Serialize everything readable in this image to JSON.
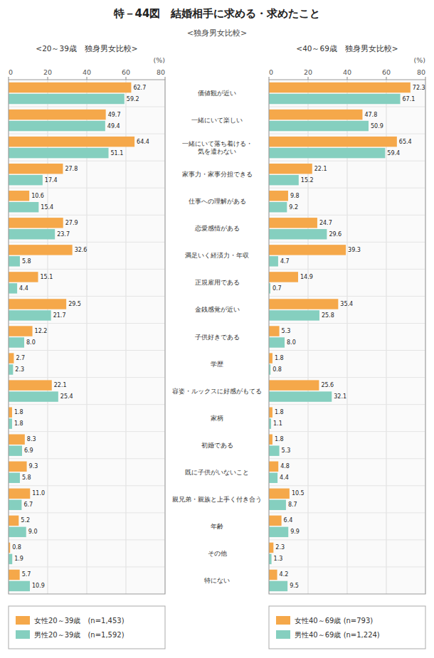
{
  "title": "特－44図　結婚相手に求める・求めたこと",
  "subtitle": "<独身男女比較>",
  "chart_data": [
    {
      "type": "bar",
      "orientation": "horizontal",
      "title": "<20～39歳　独身男女比較>",
      "xlabel": "(%)",
      "categories": [
        "価値観が近い",
        "一緒にいて楽しい",
        "一緒にいて落ち着ける・\n気を遣わない",
        "家事力・家事分担できる",
        "仕事への理解がある",
        "恋愛感情がある",
        "満足いく経済力・年収",
        "正規雇用である",
        "金銭感覚が近い",
        "子供好きである",
        "学歴",
        "容姿・ルックスに好感がもてる",
        "家柄",
        "初婚である",
        "既に子供がいないこと",
        "親兄弟・親族と上手く付き合う",
        "年齢",
        "その他",
        "特にない"
      ],
      "series": [
        {
          "name": "女性20～39歳　(n=1,453)",
          "color": "#F5A84A",
          "values": [
            62.7,
            49.7,
            64.4,
            27.8,
            10.6,
            27.9,
            32.6,
            15.1,
            29.5,
            12.2,
            2.7,
            22.1,
            1.8,
            8.3,
            9.3,
            11.0,
            5.2,
            0.8,
            5.7
          ]
        },
        {
          "name": "男性20～39歳　(n=1,592)",
          "color": "#85CFBF",
          "values": [
            59.2,
            49.4,
            51.1,
            17.4,
            15.4,
            23.7,
            5.8,
            4.4,
            21.7,
            8.0,
            2.3,
            25.4,
            1.8,
            6.9,
            5.8,
            6.7,
            9.0,
            1.9,
            10.9
          ]
        }
      ],
      "xlim": [
        0,
        80
      ],
      "xticks": [
        0,
        20,
        40,
        60,
        80
      ],
      "grid": true,
      "data_labels": true,
      "legend": "bottom"
    },
    {
      "type": "bar",
      "orientation": "horizontal",
      "title": "<40～69歳　独身男女比較>",
      "xlabel": "(%)",
      "categories": [
        "価値観が近い",
        "一緒にいて楽しい",
        "一緒にいて落ち着ける・\n気を遣わない",
        "家事力・家事分担できる",
        "仕事への理解がある",
        "恋愛感情がある",
        "満足いく経済力・年収",
        "正規雇用である",
        "金銭感覚が近い",
        "子供好きである",
        "学歴",
        "容姿・ルックスに好感がもてる",
        "家柄",
        "初婚である",
        "既に子供がいないこと",
        "親兄弟・親族と上手く付き合う",
        "年齢",
        "その他",
        "特にない"
      ],
      "series": [
        {
          "name": "女性40～69歳  (n=793)",
          "color": "#F5A84A",
          "values": [
            72.3,
            47.8,
            65.4,
            22.1,
            9.8,
            24.7,
            39.3,
            14.9,
            35.4,
            5.3,
            1.8,
            25.6,
            1.8,
            1.8,
            4.8,
            10.5,
            6.4,
            2.3,
            4.2
          ]
        },
        {
          "name": "男性40～69歳  (n=1,224)",
          "color": "#85CFBF",
          "values": [
            67.1,
            50.9,
            59.4,
            15.2,
            9.2,
            29.6,
            4.7,
            0.7,
            25.8,
            8.0,
            0.8,
            32.1,
            1.1,
            5.3,
            4.4,
            8.7,
            9.9,
            1.3,
            9.5
          ]
        }
      ],
      "xlim": [
        0,
        80
      ],
      "xticks": [
        0,
        20,
        40,
        60,
        80
      ],
      "grid": true,
      "data_labels": true,
      "legend": "bottom"
    }
  ]
}
